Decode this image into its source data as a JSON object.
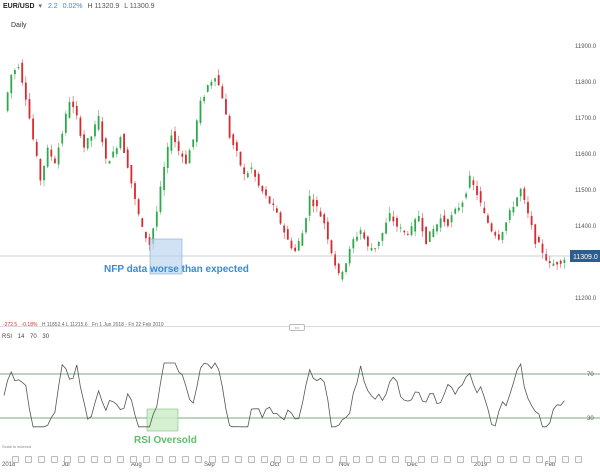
{
  "header": {
    "symbol": "EUR/USD",
    "change": "2.2",
    "change_pct": "0.02%",
    "high": "H 11320.9",
    "low": "L 11300.9"
  },
  "interval": "Daily",
  "price_axis": {
    "ticks": [
      "11900.0",
      "11800.0",
      "11700.0",
      "11600.0",
      "11500.0",
      "11400.0",
      "11200.0"
    ],
    "current_price": "11309.0"
  },
  "annotations": {
    "nfp": "NFP data worse than expected",
    "rsi": "RSI Oversold"
  },
  "info_row": {
    "points": "-272.5",
    "pct": "-0.18%",
    "hl": "H 11852.4  L 11215.6",
    "range": "Fri 1 Jun 2018 - Fri 22 Feb 2019"
  },
  "rsi": {
    "name": "RSI",
    "period": "14",
    "upper": "70",
    "lower": "30",
    "level_upper_label": "70",
    "level_lower_label": "30"
  },
  "scale_note": "Scale is indexed",
  "x_axis": [
    "2018",
    "Jul",
    "Aug",
    "Sep",
    "Oct",
    "Nov",
    "Dec",
    "2019",
    "Feb"
  ],
  "colors": {
    "up": "#2ea84a",
    "down": "#d9282f",
    "accent": "#3a8ad6",
    "price_tag": "#2c5d8f",
    "rsi_line": "#555555",
    "level_line": "#4a8f5a"
  },
  "chart_data": {
    "type": "line",
    "title": "",
    "series": [
      {
        "values": [
          11720,
          11820,
          11850,
          11760,
          11640,
          11530,
          11610,
          11580,
          11660,
          11750,
          11700,
          11620,
          11650,
          11700,
          11580,
          11600,
          11650,
          11570,
          11470,
          11390,
          11350,
          11440,
          11560,
          11660,
          11610,
          11580,
          11640,
          11740,
          11790,
          11820,
          11760,
          11650,
          11600,
          11540,
          11560,
          11510,
          11480,
          11450,
          11410,
          11360,
          11330,
          11380,
          11480,
          11450,
          11410,
          11330,
          11260,
          11300,
          11360,
          11390,
          11340,
          11340,
          11380,
          11430,
          11400,
          11380,
          11390,
          11430,
          11360,
          11390,
          11420,
          11410,
          11440,
          11470,
          11530,
          11490,
          11430,
          11390,
          11370,
          11410,
          11460,
          11500,
          11430,
          11360,
          11330,
          11290,
          11300,
          11310
        ]
      }
    ],
    "ylim": [
      11150,
      11950
    ]
  }
}
